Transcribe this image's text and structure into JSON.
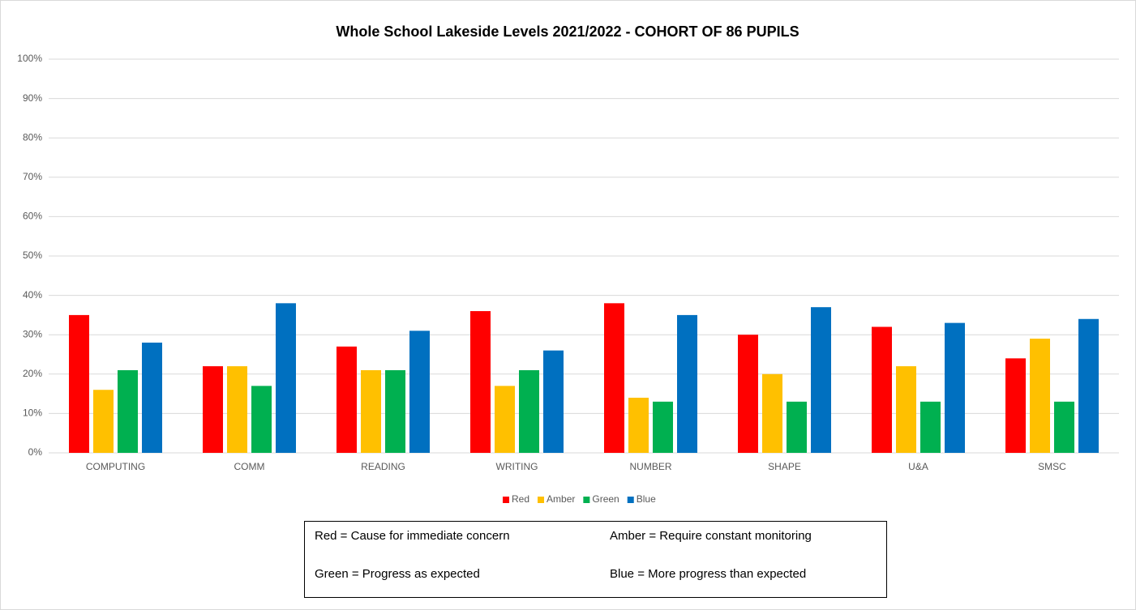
{
  "chart_data": {
    "type": "bar",
    "title": "Whole School Lakeside Levels 2021/2022 - COHORT OF 86 PUPILS",
    "categories": [
      "COMPUTING",
      "COMM",
      "READING",
      "WRITING",
      "NUMBER",
      "SHAPE",
      "U&A",
      "SMSC"
    ],
    "series": [
      {
        "name": "Red",
        "color": "#ff0000",
        "values": [
          35,
          22,
          27,
          36,
          38,
          30,
          32,
          24
        ]
      },
      {
        "name": "Amber",
        "color": "#ffc000",
        "values": [
          16,
          22,
          21,
          17,
          14,
          20,
          22,
          29
        ]
      },
      {
        "name": "Green",
        "color": "#00b050",
        "values": [
          21,
          17,
          21,
          21,
          13,
          13,
          13,
          13
        ]
      },
      {
        "name": "Blue",
        "color": "#0070c0",
        "values": [
          28,
          38,
          31,
          26,
          35,
          37,
          33,
          34
        ]
      }
    ],
    "ylim": [
      0,
      100
    ],
    "yticks": [
      {
        "value": 0,
        "label": "0%"
      },
      {
        "value": 10,
        "label": "10%"
      },
      {
        "value": 20,
        "label": "20%"
      },
      {
        "value": 30,
        "label": "30%"
      },
      {
        "value": 40,
        "label": "40%"
      },
      {
        "value": 50,
        "label": "50%"
      },
      {
        "value": 60,
        "label": "60%"
      },
      {
        "value": 70,
        "label": "70%"
      },
      {
        "value": 80,
        "label": "80%"
      },
      {
        "value": 90,
        "label": "90%"
      },
      {
        "value": 100,
        "label": "100%"
      }
    ],
    "grid": true,
    "legend": "bottom",
    "annotations": [
      "Red = Cause for immediate concern",
      "Amber = Require constant monitoring",
      "Green = Progress as expected",
      "Blue = More progress than expected"
    ]
  }
}
